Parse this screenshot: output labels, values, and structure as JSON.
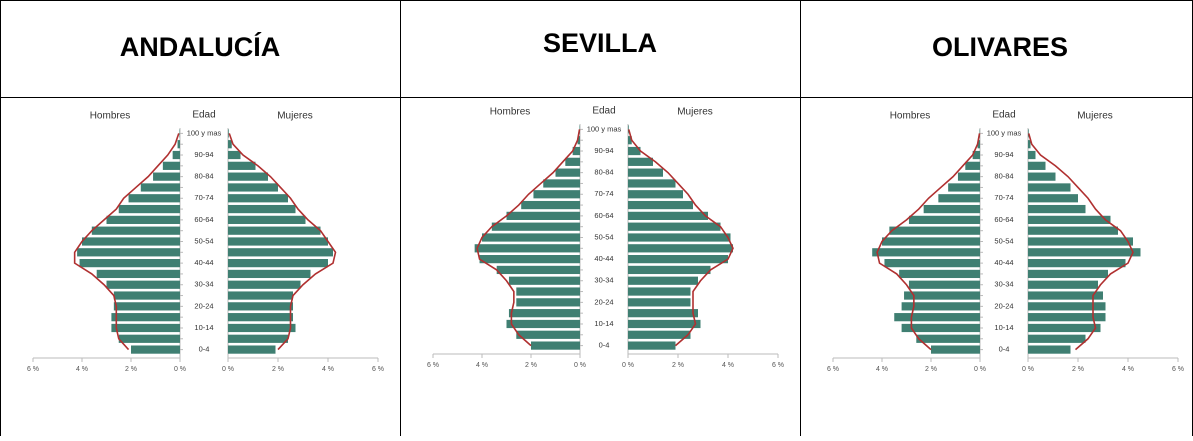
{
  "chart_data": [
    {
      "type": "pyramid",
      "title": "ANDALUCÍA",
      "category_label": "Edad",
      "categories": [
        "0-4",
        null,
        "10-14",
        null,
        "20-24",
        null,
        "30-34",
        null,
        "40-44",
        null,
        "50-54",
        null,
        "60-64",
        null,
        "70-74",
        null,
        "80-84",
        null,
        "90-94",
        null,
        "100 y mas"
      ],
      "xlim": [
        0,
        6
      ],
      "xticks": [
        {
          "value": 0,
          "label": "0 %"
        },
        {
          "value": 2,
          "label": "2 %"
        },
        {
          "value": 4,
          "label": "4 %"
        },
        {
          "value": 6,
          "label": "6 %"
        }
      ],
      "series": [
        {
          "name": "Hombres",
          "side": "left",
          "style": "bar",
          "color": "#3f7f72",
          "values": [
            2.0,
            2.5,
            2.8,
            2.8,
            2.7,
            2.7,
            3.0,
            3.4,
            4.1,
            4.2,
            4.0,
            3.6,
            3.0,
            2.5,
            2.1,
            1.6,
            1.1,
            0.7,
            0.3,
            0.1,
            0.02
          ]
        },
        {
          "name": "Mujeres",
          "side": "right",
          "style": "bar",
          "color": "#3f7f72",
          "values": [
            1.9,
            2.4,
            2.7,
            2.6,
            2.6,
            2.6,
            2.9,
            3.3,
            4.0,
            4.2,
            4.0,
            3.7,
            3.1,
            2.7,
            2.4,
            2.0,
            1.6,
            1.1,
            0.5,
            0.15,
            0.03
          ]
        },
        {
          "side": "left",
          "style": "line",
          "color": "#b03030",
          "values": [
            2.1,
            2.5,
            2.6,
            2.6,
            2.6,
            2.7,
            3.1,
            3.6,
            4.3,
            4.3,
            4.0,
            3.6,
            3.1,
            2.6,
            2.3,
            1.8,
            1.3,
            0.9,
            0.5,
            0.2,
            0.05
          ]
        },
        {
          "side": "right",
          "style": "line",
          "color": "#b03030",
          "values": [
            2.0,
            2.4,
            2.5,
            2.5,
            2.5,
            2.6,
            3.0,
            3.5,
            4.2,
            4.3,
            4.0,
            3.7,
            3.2,
            2.8,
            2.5,
            2.1,
            1.7,
            1.2,
            0.6,
            0.2,
            0.05
          ]
        }
      ]
    },
    {
      "type": "pyramid",
      "title": "SEVILLA",
      "category_label": "Edad",
      "categories": [
        "0-4",
        null,
        "10-14",
        null,
        "20-24",
        null,
        "30-34",
        null,
        "40-44",
        null,
        "50-54",
        null,
        "60-64",
        null,
        "70-74",
        null,
        "80-84",
        null,
        "90-94",
        null,
        "100 y mas"
      ],
      "xlim": [
        0,
        6
      ],
      "xticks": [
        {
          "value": 0,
          "label": "0 %"
        },
        {
          "value": 2,
          "label": "2 %"
        },
        {
          "value": 4,
          "label": "4 %"
        },
        {
          "value": 6,
          "label": "6 %"
        }
      ],
      "series": [
        {
          "name": "Hombres",
          "side": "left",
          "style": "bar",
          "color": "#3f7f72",
          "values": [
            2.0,
            2.6,
            3.0,
            2.9,
            2.6,
            2.6,
            2.9,
            3.4,
            4.1,
            4.3,
            4.0,
            3.6,
            3.0,
            2.4,
            1.9,
            1.5,
            1.0,
            0.6,
            0.3,
            0.1,
            0.02
          ]
        },
        {
          "name": "Mujeres",
          "side": "right",
          "style": "bar",
          "color": "#3f7f72",
          "values": [
            1.9,
            2.5,
            2.9,
            2.8,
            2.5,
            2.5,
            2.8,
            3.3,
            4.0,
            4.2,
            4.1,
            3.7,
            3.2,
            2.6,
            2.2,
            1.9,
            1.4,
            1.0,
            0.5,
            0.15,
            0.03
          ]
        },
        {
          "side": "left",
          "style": "line",
          "color": "#b03030",
          "values": [
            2.0,
            2.5,
            2.8,
            2.8,
            2.7,
            2.7,
            3.0,
            3.4,
            4.1,
            4.2,
            4.0,
            3.6,
            3.0,
            2.5,
            2.1,
            1.6,
            1.1,
            0.7,
            0.3,
            0.1,
            0.02
          ]
        },
        {
          "side": "right",
          "style": "line",
          "color": "#b03030",
          "values": [
            1.9,
            2.4,
            2.7,
            2.6,
            2.6,
            2.6,
            2.9,
            3.3,
            4.0,
            4.2,
            4.0,
            3.7,
            3.1,
            2.7,
            2.4,
            2.0,
            1.6,
            1.1,
            0.5,
            0.15,
            0.03
          ]
        }
      ]
    },
    {
      "type": "pyramid",
      "title": "OLIVARES",
      "category_label": "Edad",
      "categories": [
        "0-4",
        null,
        "10-14",
        null,
        "20-24",
        null,
        "30-34",
        null,
        "40-44",
        null,
        "50-54",
        null,
        "60-64",
        null,
        "70-74",
        null,
        "80-84",
        null,
        "90-94",
        null,
        "100 y mas"
      ],
      "xlim": [
        0,
        6
      ],
      "xticks": [
        {
          "value": 0,
          "label": "0 %"
        },
        {
          "value": 2,
          "label": "2 %"
        },
        {
          "value": 4,
          "label": "4 %"
        },
        {
          "value": 6,
          "label": "6 %"
        }
      ],
      "series": [
        {
          "name": "Hombres",
          "side": "left",
          "style": "bar",
          "color": "#3f7f72",
          "values": [
            2.0,
            2.6,
            3.2,
            3.5,
            3.2,
            3.1,
            2.9,
            3.3,
            3.9,
            4.4,
            4.0,
            3.7,
            2.9,
            2.3,
            1.7,
            1.3,
            0.9,
            0.6,
            0.3,
            0.1,
            0.02
          ]
        },
        {
          "name": "Mujeres",
          "side": "right",
          "style": "bar",
          "color": "#3f7f72",
          "values": [
            1.7,
            2.3,
            2.9,
            3.1,
            3.1,
            3.0,
            2.8,
            3.2,
            3.9,
            4.5,
            4.2,
            3.6,
            3.3,
            2.3,
            2.0,
            1.7,
            1.1,
            0.7,
            0.3,
            0.1,
            0.03
          ]
        },
        {
          "side": "left",
          "style": "line",
          "color": "#b03030",
          "values": [
            2.0,
            2.5,
            2.8,
            2.8,
            2.7,
            2.7,
            3.0,
            3.4,
            4.1,
            4.2,
            4.0,
            3.6,
            3.0,
            2.5,
            2.1,
            1.6,
            1.1,
            0.7,
            0.3,
            0.1,
            0.02
          ]
        },
        {
          "side": "right",
          "style": "line",
          "color": "#b03030",
          "values": [
            1.9,
            2.4,
            2.7,
            2.6,
            2.6,
            2.6,
            2.9,
            3.3,
            4.0,
            4.2,
            4.0,
            3.7,
            3.1,
            2.7,
            2.4,
            2.0,
            1.6,
            1.1,
            0.5,
            0.15,
            0.03
          ]
        }
      ]
    }
  ]
}
